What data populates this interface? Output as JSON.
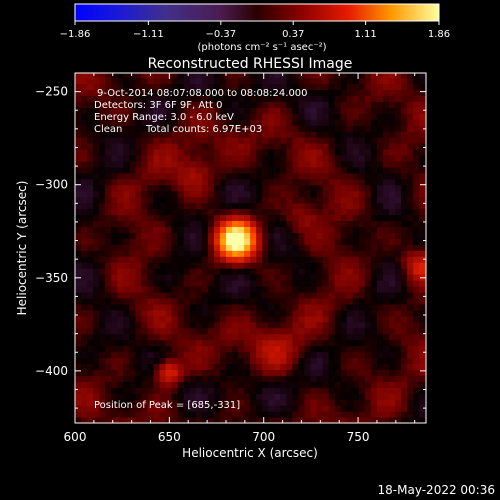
{
  "chart_data": {
    "type": "heatmap",
    "title": "Reconstructed RHESSI Image",
    "xlabel": "Heliocentric X (arcsec)",
    "ylabel": "Heliocentric Y (arcsec)",
    "xlim": [
      600,
      786
    ],
    "ylim": [
      -428,
      -240
    ],
    "x_ticks": [
      600,
      650,
      700,
      750
    ],
    "y_ticks": [
      -250,
      -300,
      -350,
      -400
    ],
    "colorbar": {
      "min": -1.86,
      "max": 1.86,
      "tick_values": [
        -1.86,
        -1.11,
        -0.37,
        0.37,
        1.11,
        1.86
      ],
      "tick_labels": [
        "-1.86",
        "-1.11",
        "-0.37",
        "0.37",
        "1.11",
        "1.86"
      ],
      "unit_label": "(photons cm⁻² s⁻¹ asec⁻²)"
    },
    "info": {
      "time_range": "9-Oct-2014 08:07:08.000 to 08:08:24.000",
      "detectors": "Detectors: 3F 6F 9F, Att 0",
      "energy_range": "Energy Range: 3.0 - 6.0 keV",
      "method": "Clean",
      "total_counts": "Total counts: 6.97E+03",
      "peak": "Position of Peak = [685,-331]"
    },
    "sources": [
      {
        "x": 684,
        "y": -331,
        "peak": 1.86,
        "sigma": 7
      },
      {
        "x": 648,
        "y": -402,
        "peak": 0.75,
        "sigma": 5
      },
      {
        "x": 780,
        "y": -345,
        "peak": 0.55,
        "sigma": 6
      },
      {
        "x": 662,
        "y": -296,
        "peak": 0.35,
        "sigma": 8
      },
      {
        "x": 718,
        "y": -318,
        "peak": 0.3,
        "sigma": 7
      },
      {
        "x": 705,
        "y": -390,
        "peak": 0.28,
        "sigma": 9
      }
    ]
  },
  "timestamp": "18-May-2022 00:36"
}
